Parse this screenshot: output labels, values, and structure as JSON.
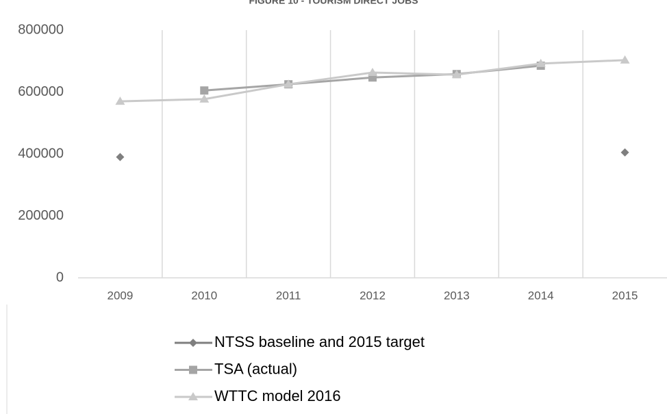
{
  "chart_data": {
    "type": "line",
    "title": "FIGURE 10 - TOURISM DIRECT JOBS",
    "categories": [
      "2009",
      "2010",
      "2011",
      "2012",
      "2013",
      "2014",
      "2015"
    ],
    "series": [
      {
        "name": "NTSS baseline and 2015 target",
        "color": "#7f7f7f",
        "marker": "diamond",
        "values": [
          390000,
          null,
          null,
          null,
          null,
          null,
          405000
        ]
      },
      {
        "name": "TSA (actual)",
        "color": "#a5a5a5",
        "marker": "square",
        "values": [
          null,
          605000,
          625000,
          647000,
          658000,
          685000,
          null
        ]
      },
      {
        "name": "WTTC model 2016",
        "color": "#c9c9c9",
        "marker": "triangle",
        "values": [
          570000,
          577000,
          625000,
          663000,
          656000,
          692000,
          703000
        ]
      }
    ],
    "ylim": [
      0,
      800000
    ],
    "yticks": [
      0,
      200000,
      400000,
      600000,
      800000
    ],
    "grid": "vertical",
    "legend": "bottom"
  }
}
